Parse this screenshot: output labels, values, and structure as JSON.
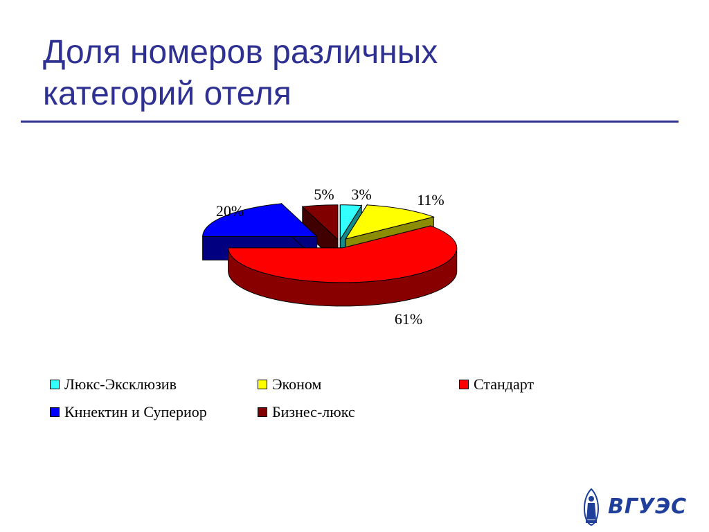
{
  "slide": {
    "title_line1": "Доля номеров различных",
    "title_line2": "категорий отеля",
    "title_color": "#2e3192"
  },
  "chart_data": {
    "type": "pie",
    "three_d": true,
    "categories": [
      "Люкс-Эксклюзив",
      "Эконом",
      "Стандарт",
      "Кннектин и Супериор",
      "Бизнес-люкс"
    ],
    "values": [
      3,
      11,
      61,
      20,
      5
    ],
    "data_labels": [
      "3%",
      "11%",
      "61%",
      "20%",
      "5%"
    ],
    "colors": [
      "#33ffff",
      "#ffff00",
      "#ff0000",
      "#0000ff",
      "#800000"
    ],
    "side_colors": [
      "#168a8a",
      "#8c8c00",
      "#880000",
      "#000080",
      "#400000"
    ],
    "exploded": true,
    "legend": "bottom",
    "legend_items": [
      {
        "label": "Люкс-Эксклюзив",
        "color": "#33ffff"
      },
      {
        "label": "Эконом",
        "color": "#ffff00"
      },
      {
        "label": "Стандарт",
        "color": "#ff0000"
      },
      {
        "label": "Кннектин и Супериор",
        "color": "#0000ff"
      },
      {
        "label": "Бизнес-люкс",
        "color": "#800000"
      }
    ]
  },
  "logo": {
    "text": "ВГУЭС",
    "icon": "statue-emblem-icon",
    "color": "#1f3f9a"
  }
}
